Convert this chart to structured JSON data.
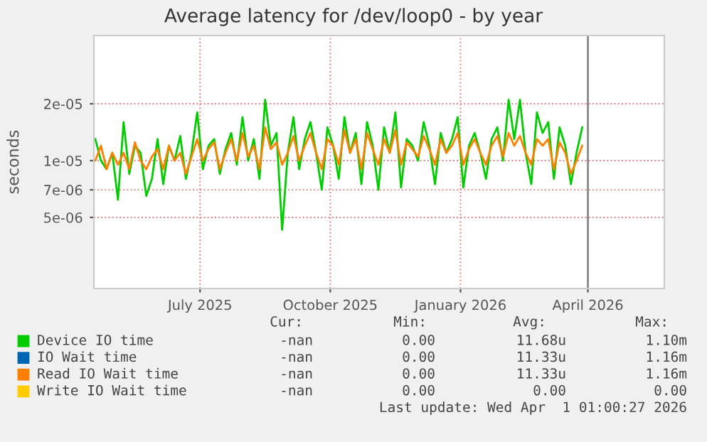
{
  "chart_data": {
    "type": "line",
    "title": "Average latency for /dev/loop0 - by year",
    "ylabel": "seconds",
    "log": "y",
    "grid": true,
    "legend": "bottom",
    "line_style": "solid",
    "marker": "none",
    "xlim": [
      "2025-04-17",
      "2026-05-25"
    ],
    "xticks": [
      {
        "value": "2025-07-01",
        "label": "July 2025"
      },
      {
        "value": "2025-10-01",
        "label": "October 2025"
      },
      {
        "value": "2026-01-01",
        "label": "January 2026"
      },
      {
        "value": "2026-04-01",
        "label": "April 2026"
      }
    ],
    "ylim": [
      2.1e-06,
      4.6e-05
    ],
    "yticks": [
      5e-06,
      7e-06,
      1e-05,
      2e-05
    ],
    "ref_lines": [
      {
        "axis": "x",
        "value": "2026-04-01",
        "label": null,
        "color": "#888888"
      }
    ],
    "x": [
      "2025-04-18",
      "2025-04-22",
      "2025-04-26",
      "2025-04-30",
      "2025-05-04",
      "2025-05-08",
      "2025-05-12",
      "2025-05-16",
      "2025-05-20",
      "2025-05-24",
      "2025-05-28",
      "2025-06-01",
      "2025-06-05",
      "2025-06-09",
      "2025-06-13",
      "2025-06-17",
      "2025-06-21",
      "2025-06-25",
      "2025-06-29",
      "2025-07-03",
      "2025-07-07",
      "2025-07-11",
      "2025-07-15",
      "2025-07-19",
      "2025-07-23",
      "2025-07-27",
      "2025-07-31",
      "2025-08-04",
      "2025-08-08",
      "2025-08-12",
      "2025-08-16",
      "2025-08-20",
      "2025-08-24",
      "2025-08-28",
      "2025-09-01",
      "2025-09-05",
      "2025-09-09",
      "2025-09-13",
      "2025-09-17",
      "2025-09-21",
      "2025-09-25",
      "2025-09-29",
      "2025-10-03",
      "2025-10-07",
      "2025-10-11",
      "2025-10-15",
      "2025-10-19",
      "2025-10-23",
      "2025-10-27",
      "2025-10-31",
      "2025-11-04",
      "2025-11-08",
      "2025-11-12",
      "2025-11-16",
      "2025-11-20",
      "2025-11-24",
      "2025-11-28",
      "2025-12-02",
      "2025-12-06",
      "2025-12-10",
      "2025-12-14",
      "2025-12-18",
      "2025-12-22",
      "2025-12-26",
      "2025-12-30",
      "2026-01-03",
      "2026-01-07",
      "2026-01-11",
      "2026-01-15",
      "2026-01-19",
      "2026-01-23",
      "2026-01-27",
      "2026-01-31",
      "2026-02-04",
      "2026-02-08",
      "2026-02-12",
      "2026-02-16",
      "2026-02-20",
      "2026-02-24",
      "2026-02-28",
      "2026-03-04",
      "2026-03-08",
      "2026-03-12",
      "2026-03-16",
      "2026-03-20",
      "2026-03-24",
      "2026-03-28"
    ],
    "series": [
      {
        "name": "Device IO time",
        "color": "#00cc00",
        "values": [
          1.3e-05,
          1e-05,
          9e-06,
          1.1e-05,
          6.2e-06,
          1.6e-05,
          8.5e-06,
          1.2e-05,
          1.1e-05,
          6.5e-06,
          8e-06,
          1.3e-05,
          7.5e-06,
          1.2e-05,
          1e-05,
          1.35e-05,
          8e-06,
          1.1e-05,
          1.8e-05,
          9e-06,
          1.2e-05,
          1.3e-05,
          8.5e-06,
          1.15e-05,
          1.4e-05,
          9.5e-06,
          1.7e-05,
          1e-05,
          1.3e-05,
          8e-06,
          2.1e-05,
          1.2e-05,
          1.4e-05,
          4.3e-06,
          1.1e-05,
          1.7e-05,
          9e-06,
          1.3e-05,
          1.6e-05,
          1.1e-05,
          7e-06,
          1.5e-05,
          1.2e-05,
          8e-06,
          1.7e-05,
          1.1e-05,
          1.4e-05,
          7.5e-06,
          1.6e-05,
          1.2e-05,
          7e-06,
          1.5e-05,
          1.1e-05,
          1.8e-05,
          7.2e-06,
          1.3e-05,
          1.2e-05,
          1e-05,
          1.6e-05,
          1.2e-05,
          7.5e-06,
          1.4e-05,
          1.1e-05,
          1.3e-05,
          1.7e-05,
          7.2e-06,
          1.2e-05,
          1.4e-05,
          1.1e-05,
          8e-06,
          1.3e-05,
          1.5e-05,
          1e-05,
          2.1e-05,
          1.3e-05,
          2.1e-05,
          1.1e-05,
          7.5e-06,
          1.8e-05,
          1.4e-05,
          1.6e-05,
          8e-06,
          1.5e-05,
          1.2e-05,
          7.5e-06,
          1.1e-05,
          1.5e-05
        ]
      },
      {
        "name": "IO Wait time",
        "color": "#0066b3",
        "values": [
          null,
          null,
          null,
          null,
          null,
          null,
          null,
          null,
          null,
          null,
          null,
          null,
          null,
          null,
          null,
          null,
          null,
          null,
          null,
          null,
          null,
          null,
          null,
          null,
          null,
          null,
          null,
          null,
          null,
          null,
          null,
          null,
          null,
          null,
          null,
          null,
          null,
          null,
          null,
          null,
          null,
          null,
          null,
          null,
          null,
          null,
          null,
          null,
          null,
          null,
          null,
          null,
          null,
          null,
          null,
          null,
          null,
          null,
          null,
          null,
          null,
          null,
          null,
          null,
          null,
          null,
          null,
          null,
          null,
          null,
          null,
          null,
          null,
          null,
          null,
          null,
          null,
          null,
          null,
          null,
          null,
          null,
          null,
          null,
          null,
          null,
          null
        ]
      },
      {
        "name": "Read IO Wait time",
        "color": "#ff8000",
        "values": [
          1e-05,
          1.2e-05,
          9e-06,
          1.1e-05,
          9.5e-06,
          1.1e-05,
          9e-06,
          1.25e-05,
          1e-05,
          9e-06,
          1.05e-05,
          1.15e-05,
          9e-06,
          1.2e-05,
          1e-05,
          1.1e-05,
          8.5e-06,
          1.05e-05,
          1.3e-05,
          1e-05,
          1.15e-05,
          1.25e-05,
          9e-06,
          1.1e-05,
          1.3e-05,
          1e-05,
          1.4e-05,
          1.05e-05,
          1.2e-05,
          9e-06,
          1.5e-05,
          1.15e-05,
          1.25e-05,
          9.5e-06,
          1.1e-05,
          1.35e-05,
          1e-05,
          1.2e-05,
          1.4e-05,
          1.1e-05,
          9e-06,
          1.3e-05,
          1.2e-05,
          9.5e-06,
          1.45e-05,
          1.1e-05,
          1.3e-05,
          9e-06,
          1.4e-05,
          1.15e-05,
          9.5e-06,
          1.3e-05,
          1.1e-05,
          1.45e-05,
          9.5e-06,
          1.25e-05,
          1.15e-05,
          1.05e-05,
          1.35e-05,
          1.15e-05,
          9.5e-06,
          1.3e-05,
          1.1e-05,
          1.2e-05,
          1.4e-05,
          9.5e-06,
          1.15e-05,
          1.3e-05,
          1.1e-05,
          9.5e-06,
          1.2e-05,
          1.35e-05,
          1.05e-05,
          1.4e-05,
          1.2e-05,
          1.35e-05,
          1.1e-05,
          9.5e-06,
          1.3e-05,
          1.2e-05,
          1.3e-05,
          9e-06,
          1.25e-05,
          1.1e-05,
          8.5e-06,
          1e-05,
          1.2e-05
        ]
      },
      {
        "name": "Write IO Wait time",
        "color": "#ffcc00",
        "values": [
          null,
          null,
          null,
          null,
          null,
          null,
          null,
          null,
          null,
          null,
          null,
          null,
          null,
          null,
          null,
          null,
          null,
          null,
          null,
          null,
          null,
          null,
          null,
          null,
          null,
          null,
          null,
          null,
          null,
          null,
          null,
          null,
          null,
          null,
          null,
          null,
          null,
          null,
          null,
          null,
          null,
          null,
          null,
          null,
          null,
          null,
          null,
          null,
          null,
          null,
          null,
          null,
          null,
          null,
          null,
          null,
          null,
          null,
          null,
          null,
          null,
          null,
          null,
          null,
          null,
          null,
          null,
          null,
          null,
          null,
          null,
          null,
          null,
          null,
          null,
          null,
          null,
          null,
          null,
          null,
          null,
          null,
          null,
          null,
          null,
          null,
          null
        ]
      }
    ],
    "annotations": [
      "Cur:",
      "Min:",
      "Avg:",
      "Max:",
      "-nan",
      "0.00",
      "11.68u",
      "1.10m",
      "-nan",
      "0.00",
      "11.33u",
      "1.16m",
      "-nan",
      "0.00",
      "11.33u",
      "1.16m",
      "-nan",
      "0.00",
      "0.00",
      "0.00",
      "Last update: Wed Apr  1 01:00:27 2026"
    ]
  }
}
